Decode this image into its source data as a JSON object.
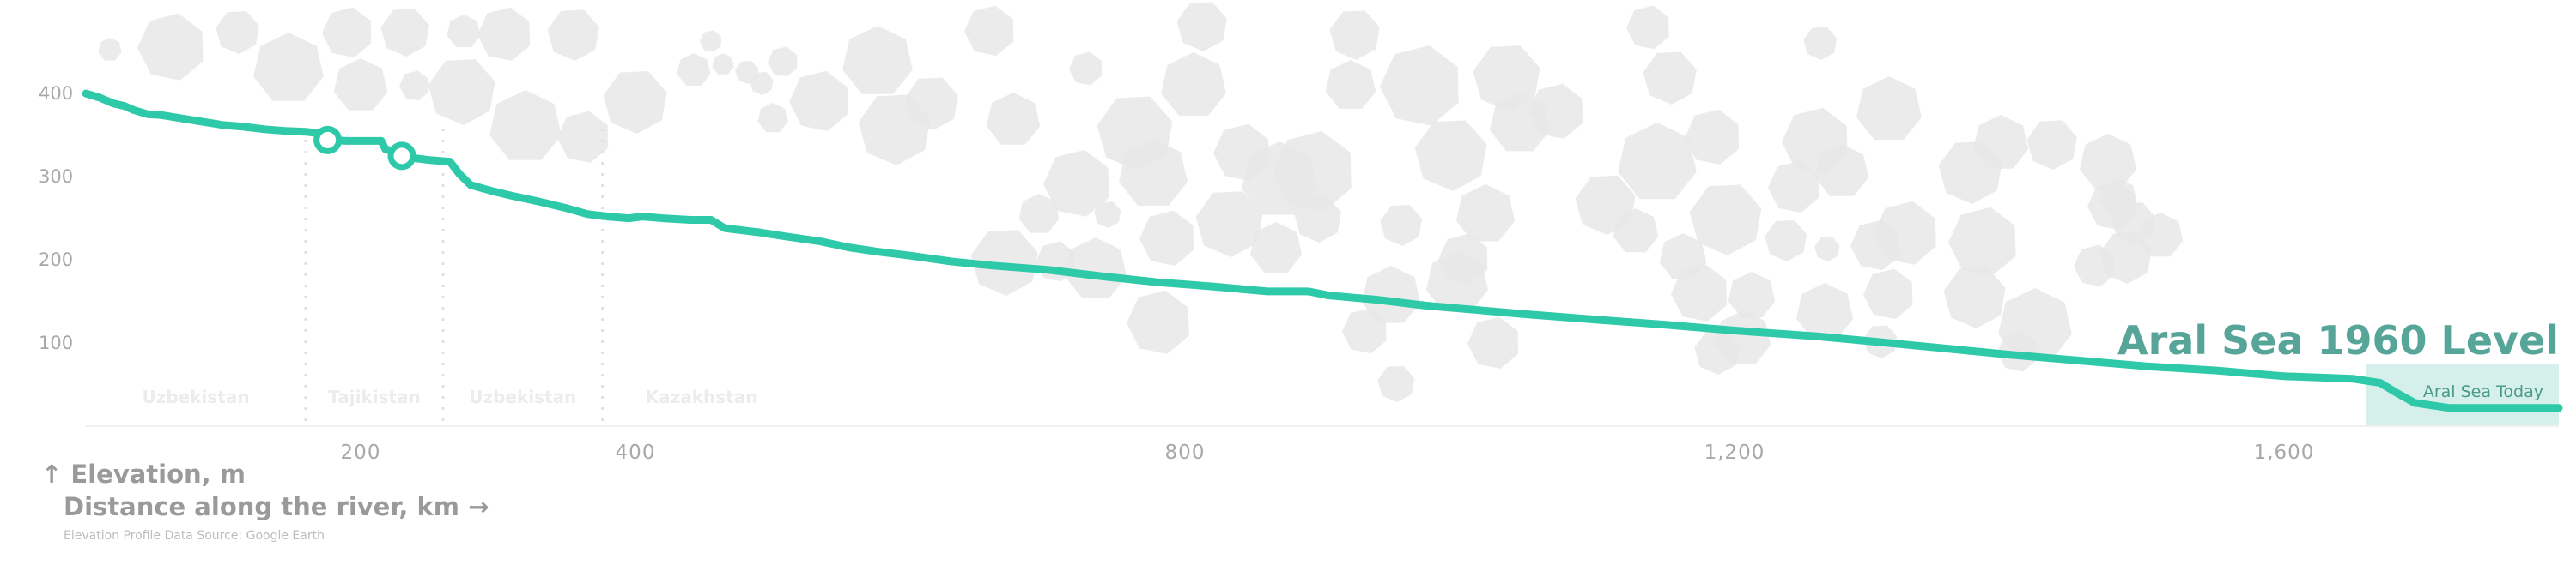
{
  "chart_data": {
    "type": "area",
    "title": "Aral Sea 1960 Level",
    "annotation": "Aral Sea Today",
    "ylabel": "↑ Elevation, m",
    "xlabel": "Distance along the river, km →",
    "source": "Elevation Profile Data Source: Google Earth",
    "xlim": [
      0,
      1800
    ],
    "ylim": [
      0,
      430
    ],
    "yticks": [
      "400",
      "300",
      "200",
      "100"
    ],
    "ytick_values": [
      400,
      300,
      200,
      100
    ],
    "xticks": [
      "200",
      "400",
      "800",
      "1,200",
      "1,600"
    ],
    "xtick_values": [
      200,
      400,
      800,
      1200,
      1600
    ],
    "grid": false,
    "colors": {
      "line": "#2ec9a8",
      "aral_band": "#d5f0ea",
      "hexagon": "#e8e8e8",
      "country": "#ececec"
    },
    "countries": [
      {
        "name": "Uzbekistan",
        "from": 0,
        "to": 160
      },
      {
        "name": "Tajikistan",
        "from": 160,
        "to": 260
      },
      {
        "name": "Uzbekistan",
        "from": 260,
        "to": 376
      },
      {
        "name": "Kazakhstan",
        "from": 376,
        "to": 1800
      }
    ],
    "aral_1960_level": 75,
    "aral_today_level": 22,
    "markers": [
      {
        "x": 176,
        "y": 344
      },
      {
        "x": 230,
        "y": 325
      }
    ],
    "series": [
      {
        "values": [
          [
            0,
            400
          ],
          [
            10,
            395
          ],
          [
            20,
            388
          ],
          [
            28,
            385
          ],
          [
            35,
            380
          ],
          [
            45,
            375
          ],
          [
            55,
            374
          ],
          [
            70,
            370
          ],
          [
            85,
            366
          ],
          [
            100,
            362
          ],
          [
            115,
            360
          ],
          [
            130,
            357
          ],
          [
            145,
            355
          ],
          [
            160,
            354
          ],
          [
            170,
            352
          ],
          [
            176,
            344
          ],
          [
            190,
            343
          ],
          [
            210,
            343
          ],
          [
            215,
            343
          ],
          [
            218,
            333
          ],
          [
            225,
            330
          ],
          [
            230,
            325
          ],
          [
            240,
            322
          ],
          [
            250,
            320
          ],
          [
            265,
            318
          ],
          [
            272,
            303
          ],
          [
            280,
            290
          ],
          [
            295,
            283
          ],
          [
            310,
            277
          ],
          [
            330,
            270
          ],
          [
            350,
            262
          ],
          [
            365,
            255
          ],
          [
            380,
            252
          ],
          [
            395,
            250
          ],
          [
            405,
            252
          ],
          [
            420,
            250
          ],
          [
            440,
            248
          ],
          [
            455,
            248
          ],
          [
            465,
            238
          ],
          [
            490,
            233
          ],
          [
            510,
            228
          ],
          [
            535,
            222
          ],
          [
            555,
            215
          ],
          [
            575,
            210
          ],
          [
            600,
            205
          ],
          [
            630,
            198
          ],
          [
            660,
            193
          ],
          [
            700,
            188
          ],
          [
            740,
            180
          ],
          [
            780,
            173
          ],
          [
            820,
            168
          ],
          [
            860,
            162
          ],
          [
            890,
            162
          ],
          [
            905,
            157
          ],
          [
            940,
            152
          ],
          [
            975,
            145
          ],
          [
            1010,
            140
          ],
          [
            1045,
            135
          ],
          [
            1100,
            128
          ],
          [
            1150,
            122
          ],
          [
            1200,
            115
          ],
          [
            1260,
            108
          ],
          [
            1300,
            102
          ],
          [
            1350,
            94
          ],
          [
            1400,
            86
          ],
          [
            1450,
            79
          ],
          [
            1500,
            72
          ],
          [
            1550,
            67
          ],
          [
            1600,
            60
          ],
          [
            1650,
            57
          ],
          [
            1670,
            52
          ],
          [
            1682,
            40
          ],
          [
            1695,
            28
          ],
          [
            1720,
            22
          ],
          [
            1800,
            22
          ]
        ]
      }
    ]
  }
}
